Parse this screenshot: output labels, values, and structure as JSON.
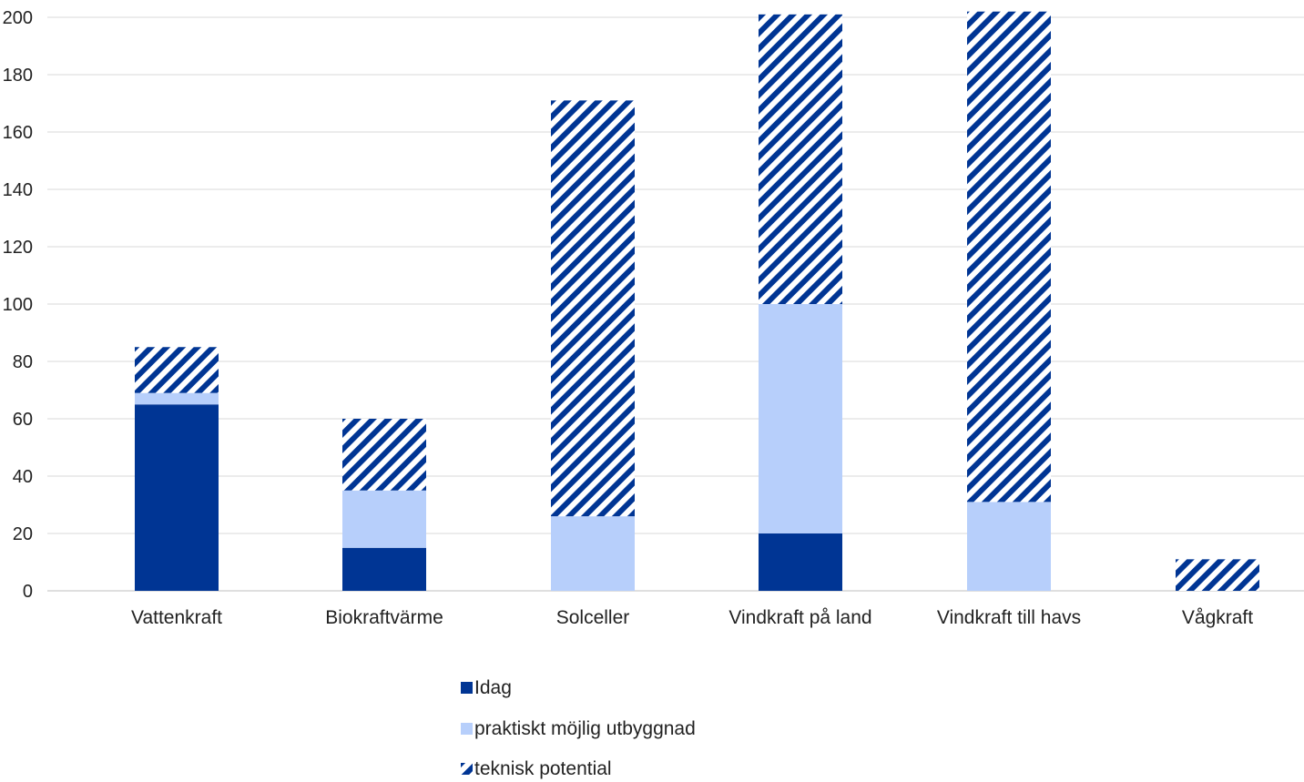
{
  "chart_data": {
    "type": "bar",
    "stacked": true,
    "title": "",
    "xlabel": "",
    "ylabel": "",
    "ylim": [
      0,
      200
    ],
    "yticks": [
      0,
      20,
      40,
      60,
      80,
      100,
      120,
      140,
      160,
      180,
      200
    ],
    "grid": true,
    "legend_position": "bottom",
    "categories": [
      "Vattenkraft",
      "Biokraftvärme",
      "Solceller",
      "Vindkraft på land",
      "Vindkraft till havs",
      "Vågkraft"
    ],
    "series": [
      {
        "name": "Idag",
        "color": "#003594",
        "pattern": "solid",
        "values": [
          65,
          15,
          0,
          20,
          0,
          0
        ]
      },
      {
        "name": "praktiskt möjlig utbyggnad",
        "color": "#b7cffb",
        "pattern": "solid",
        "values": [
          4,
          20,
          26,
          80,
          31,
          0
        ]
      },
      {
        "name": "teknisk potential",
        "color": "#003594",
        "pattern": "diagonal-stripes",
        "values": [
          16,
          25,
          145,
          101,
          171,
          11
        ]
      }
    ]
  }
}
